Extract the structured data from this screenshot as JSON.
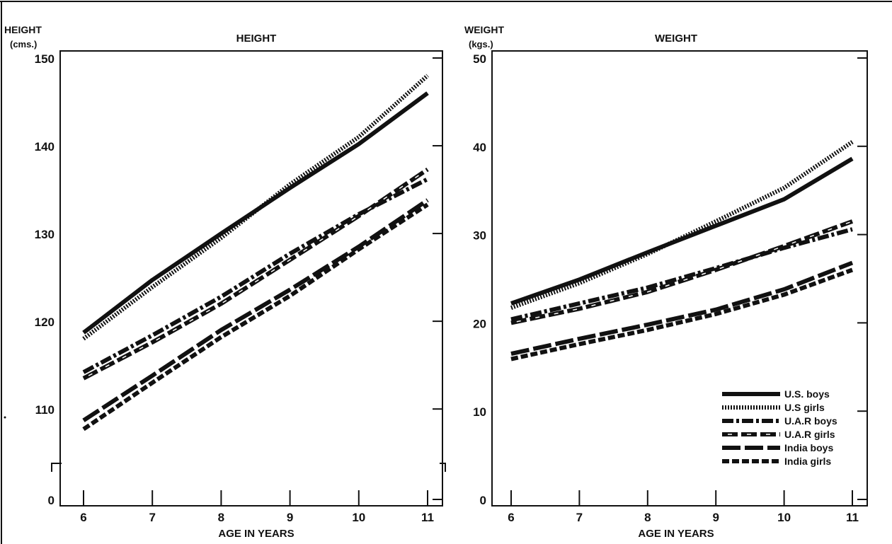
{
  "chart_data": [
    {
      "type": "line",
      "title": "HEIGHT",
      "ylabel_line1": "HEIGHT",
      "ylabel_line2": "(cms.)",
      "xlabel": "AGE IN YEARS",
      "x": [
        6,
        7,
        8,
        9,
        10,
        11
      ],
      "x_ticks": [
        "6",
        "7",
        "8",
        "9",
        "10",
        "11"
      ],
      "y_ticks": [
        "0",
        "110",
        "120",
        "130",
        "140",
        "150"
      ],
      "ylim": [
        103,
        150
      ],
      "axis_break": true,
      "grid": false,
      "series": [
        {
          "name": "U.S. boys",
          "values": [
            118.7,
            124.7,
            130.0,
            135.2,
            140.2,
            146.0
          ]
        },
        {
          "name": "U.S girls",
          "values": [
            118.0,
            123.9,
            129.5,
            135.6,
            141.0,
            148.0
          ]
        },
        {
          "name": "U.A.R boys",
          "values": [
            114.2,
            118.4,
            122.8,
            127.7,
            132.2,
            136.2
          ]
        },
        {
          "name": "U.A.R girls",
          "values": [
            113.5,
            117.6,
            122.0,
            127.0,
            132.0,
            137.3
          ]
        },
        {
          "name": "India boys",
          "values": [
            108.7,
            113.8,
            119.0,
            123.6,
            128.5,
            133.8
          ]
        },
        {
          "name": "India girls",
          "values": [
            107.7,
            113.0,
            118.2,
            122.9,
            128.2,
            133.3
          ]
        }
      ]
    },
    {
      "type": "line",
      "title": "WEIGHT",
      "ylabel_line1": "WEIGHT",
      "ylabel_line2": "(kgs.)",
      "xlabel": "AGE IN YEARS",
      "x": [
        6,
        7,
        8,
        9,
        10,
        11
      ],
      "x_ticks": [
        "6",
        "7",
        "8",
        "9",
        "10",
        "11"
      ],
      "y_ticks": [
        "0",
        "10",
        "20",
        "30",
        "40",
        "50"
      ],
      "ylim": [
        0,
        50
      ],
      "axis_break": false,
      "grid": false,
      "legend_position": "bottom-right",
      "series": [
        {
          "name": "U.S. boys",
          "values": [
            22.2,
            24.9,
            28.0,
            31.0,
            34.0,
            38.6
          ]
        },
        {
          "name": "U.S girls",
          "values": [
            21.7,
            24.5,
            27.8,
            31.5,
            35.3,
            40.5
          ]
        },
        {
          "name": "U.A.R boys",
          "values": [
            20.4,
            22.2,
            24.0,
            26.2,
            28.5,
            30.6
          ]
        },
        {
          "name": "U.A.R girls",
          "values": [
            20.0,
            21.6,
            23.5,
            26.0,
            28.7,
            31.5
          ]
        },
        {
          "name": "India boys",
          "values": [
            16.5,
            18.2,
            19.8,
            21.5,
            23.8,
            26.8
          ]
        },
        {
          "name": "India girls",
          "values": [
            15.9,
            17.6,
            19.2,
            21.0,
            23.2,
            26.0
          ]
        }
      ]
    }
  ],
  "styles": {
    "ink": "#111111",
    "series_dash": [
      "solid",
      "dotted",
      "dashdot",
      "slash",
      "longdash",
      "dash"
    ]
  }
}
